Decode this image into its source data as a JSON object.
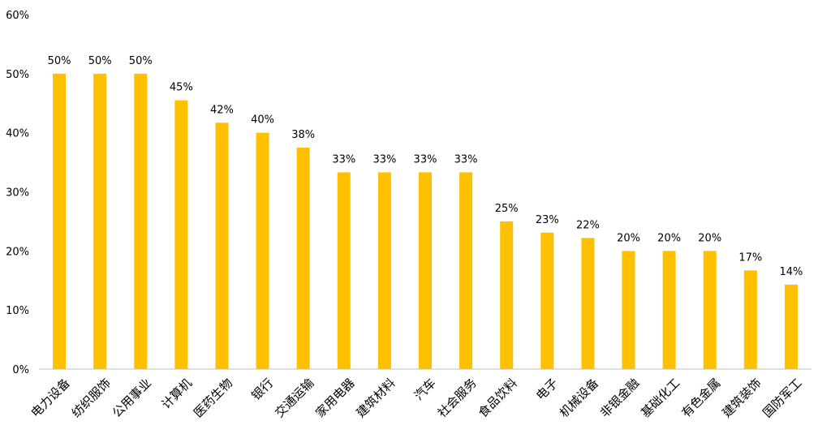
{
  "chart_data": {
    "type": "bar",
    "title": "",
    "xlabel": "",
    "ylabel": "",
    "ylim": [
      0,
      60
    ],
    "yticks": [
      0,
      10,
      20,
      30,
      40,
      50,
      60
    ],
    "y_tick_format": "{v}%",
    "grid": false,
    "legend": "none",
    "bar_color": "#FFC000",
    "categories": [
      "电力设备",
      "纺织服饰",
      "公用事业",
      "计算机",
      "医药生物",
      "银行",
      "交通运输",
      "家用电器",
      "建筑材料",
      "汽车",
      "社会服务",
      "食品饮料",
      "电子",
      "机械设备",
      "非银金融",
      "基础化工",
      "有色金属",
      "建筑装饰",
      "国防军工"
    ],
    "series": [
      {
        "values": [
          50,
          50,
          50,
          45.5,
          41.7,
          40,
          37.5,
          33.3,
          33.3,
          33.3,
          33.3,
          25,
          23.1,
          22.2,
          20,
          20,
          20,
          16.7,
          14.3
        ],
        "data_labels": [
          "50%",
          "50%",
          "50%",
          "45%",
          "42%",
          "40%",
          "38%",
          "33%",
          "33%",
          "33%",
          "33%",
          "25%",
          "23%",
          "22%",
          "20%",
          "20%",
          "20%",
          "17%",
          "14%"
        ]
      }
    ]
  }
}
